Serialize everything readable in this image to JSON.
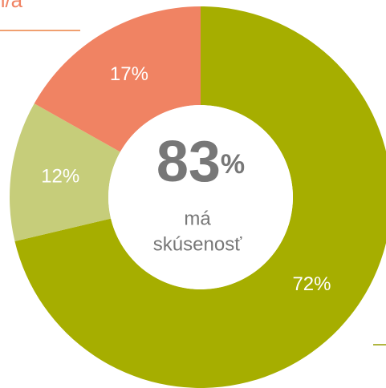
{
  "chart_data": {
    "type": "donut",
    "header": "n/a",
    "values": [
      72,
      12,
      17
    ],
    "value_labels": [
      "72%",
      "12%",
      "17%"
    ],
    "colors": [
      "#a6ae00",
      "#c6cd7a",
      "#f08363"
    ],
    "center_value": "83",
    "center_unit": "%",
    "center_text": [
      "má",
      "skúsenosť"
    ]
  }
}
